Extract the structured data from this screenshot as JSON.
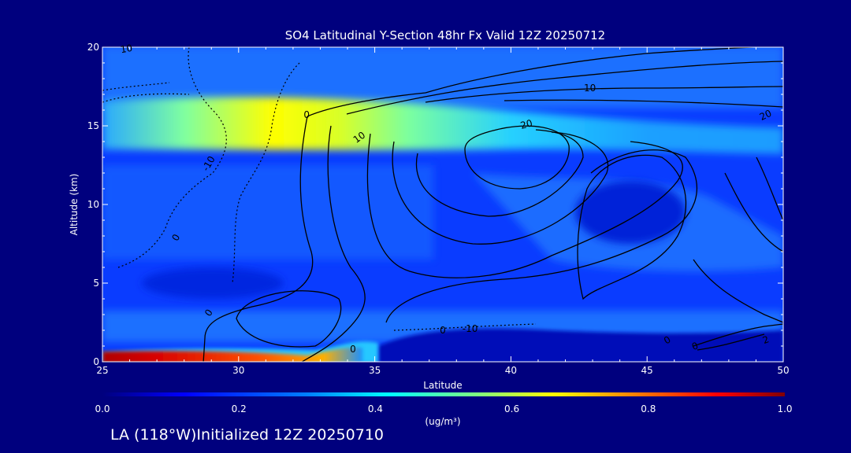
{
  "chart_data": {
    "type": "heatmap",
    "title": "SO4 Latitudinal Y-Section 48hr  Fx Valid 12Z 20250712",
    "xlabel": "Latitude",
    "ylabel": "Altitude (km)",
    "xlim": [
      25,
      50
    ],
    "ylim": [
      0,
      20
    ],
    "x_ticks": [
      25,
      30,
      35,
      40,
      45,
      50
    ],
    "y_ticks": [
      0,
      5,
      10,
      15,
      20
    ],
    "colorbar": {
      "range": [
        0.0,
        1.0
      ],
      "ticks": [
        "0.0",
        "0.2",
        "0.4",
        "0.6",
        "0.8",
        "1.0"
      ],
      "unit": "(ug/m³)",
      "colors": [
        "#00007e",
        "#0000ff",
        "#0080ff",
        "#00ffff",
        "#80ff80",
        "#ffff00",
        "#ff8000",
        "#ff0000",
        "#800000"
      ]
    },
    "contour_labels": [
      "10",
      "10",
      "10",
      "20",
      "20",
      "0",
      "0",
      "0",
      "-10",
      "-10",
      "0",
      "0",
      "0",
      "0",
      "2"
    ],
    "grid": false
  },
  "footer": {
    "text": "LA (118°W)Initialized 12Z 20250710"
  }
}
